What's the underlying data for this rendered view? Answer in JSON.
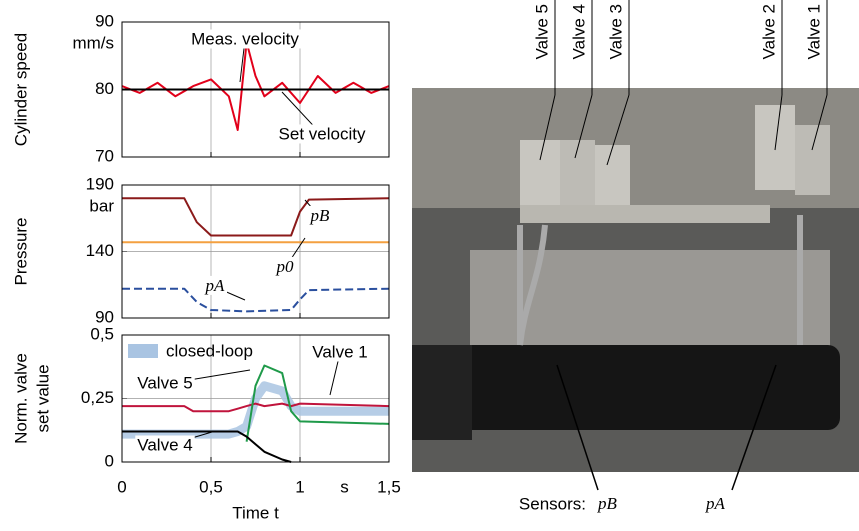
{
  "chart_data": [
    {
      "type": "line",
      "ylabel": "Cylinder speed",
      "unit": "mm/s",
      "x": [
        0,
        0.1,
        0.2,
        0.3,
        0.4,
        0.5,
        0.6,
        0.65,
        0.7,
        0.75,
        0.8,
        0.9,
        1.0,
        1.1,
        1.2,
        1.3,
        1.4,
        1.5
      ],
      "series": [
        {
          "name": "Meas. velocity",
          "color": "#e2001a",
          "values": [
            80.5,
            79.5,
            81,
            79,
            80.5,
            81.5,
            79,
            74,
            87,
            82,
            79,
            81,
            78,
            82,
            79.5,
            81,
            79.5,
            80.5
          ]
        },
        {
          "name": "Set velocity",
          "color": "#000000",
          "values": [
            80,
            80,
            80,
            80,
            80,
            80,
            80,
            80,
            80,
            80,
            80,
            80,
            80,
            80,
            80,
            80,
            80,
            80
          ]
        }
      ],
      "xlim": [
        0,
        1.5
      ],
      "xticks": [
        0,
        0.5,
        1,
        1.5
      ],
      "ylim": [
        70,
        90
      ],
      "yticks": [
        70,
        80,
        90
      ],
      "grid": true
    },
    {
      "type": "line",
      "ylabel": "Pressure",
      "unit": "bar",
      "x": [
        0,
        0.35,
        0.42,
        0.5,
        0.7,
        0.95,
        1.0,
        1.05,
        1.5
      ],
      "series": [
        {
          "name": "pB",
          "color": "#8b1a1a",
          "values": [
            180,
            180,
            162,
            152,
            152,
            152,
            170,
            179,
            180
          ]
        },
        {
          "name": "p0",
          "color": "#f4a040",
          "values": [
            147,
            147,
            147,
            147,
            147,
            147,
            147,
            147,
            147
          ]
        },
        {
          "name": "pA",
          "color": "#2a4f9e",
          "dash": true,
          "values": [
            112,
            112,
            102,
            96,
            95,
            96,
            104,
            111,
            112
          ]
        }
      ],
      "xlim": [
        0,
        1.5
      ],
      "xticks": [
        0,
        0.5,
        1,
        1.5
      ],
      "ylim": [
        90,
        190
      ],
      "yticks": [
        90,
        140,
        190
      ],
      "grid": true
    },
    {
      "type": "line",
      "ylabel": [
        "Norm. valve",
        "set value"
      ],
      "xlabel": "Time t",
      "xunit": "s",
      "x": [
        0,
        0.35,
        0.4,
        0.6,
        0.65,
        0.7,
        0.75,
        0.8,
        0.9,
        0.95,
        1.0,
        1.5
      ],
      "series": [
        {
          "name": "closed-loop",
          "color": "#a9c4e2",
          "width": 9,
          "values": [
            0.11,
            0.11,
            0.11,
            0.11,
            0.12,
            0.14,
            0.25,
            0.3,
            0.28,
            0.22,
            0.2,
            0.2
          ]
        },
        {
          "name": "Valve 1",
          "color": "#c0143c",
          "values": [
            0.22,
            0.22,
            0.2,
            0.2,
            0.21,
            0.22,
            0.23,
            0.22,
            0.23,
            0.22,
            0.23,
            0.22
          ]
        },
        {
          "name": "Valve 5",
          "color": "#1f9a4a",
          "values": [
            null,
            null,
            null,
            null,
            null,
            0.08,
            0.3,
            0.38,
            0.35,
            0.2,
            0.16,
            0.15
          ]
        },
        {
          "name": "Valve 4",
          "color": "#000000",
          "values": [
            0.12,
            0.12,
            0.12,
            0.12,
            0.12,
            0.1,
            0.07,
            0.04,
            0.01,
            0,
            null,
            null
          ]
        }
      ],
      "xlim": [
        0,
        1.5
      ],
      "xticks": [
        0,
        {
          "value": 0.5,
          "label": "0,5"
        },
        1,
        {
          "value": 1.5,
          "label": "1,5"
        }
      ],
      "ylim": [
        0,
        0.5
      ],
      "yticks": [
        0,
        {
          "value": 0.25,
          "label": "0,25"
        },
        {
          "value": 0.5,
          "label": "0,5"
        }
      ],
      "grid": true
    }
  ],
  "photo": {
    "valves": [
      "Valve 5",
      "Valve 4",
      "Valve 3",
      "Valve 2",
      "Valve 1"
    ],
    "sensors": "Sensors:",
    "sensor_labels": [
      "pB",
      "pA"
    ]
  }
}
